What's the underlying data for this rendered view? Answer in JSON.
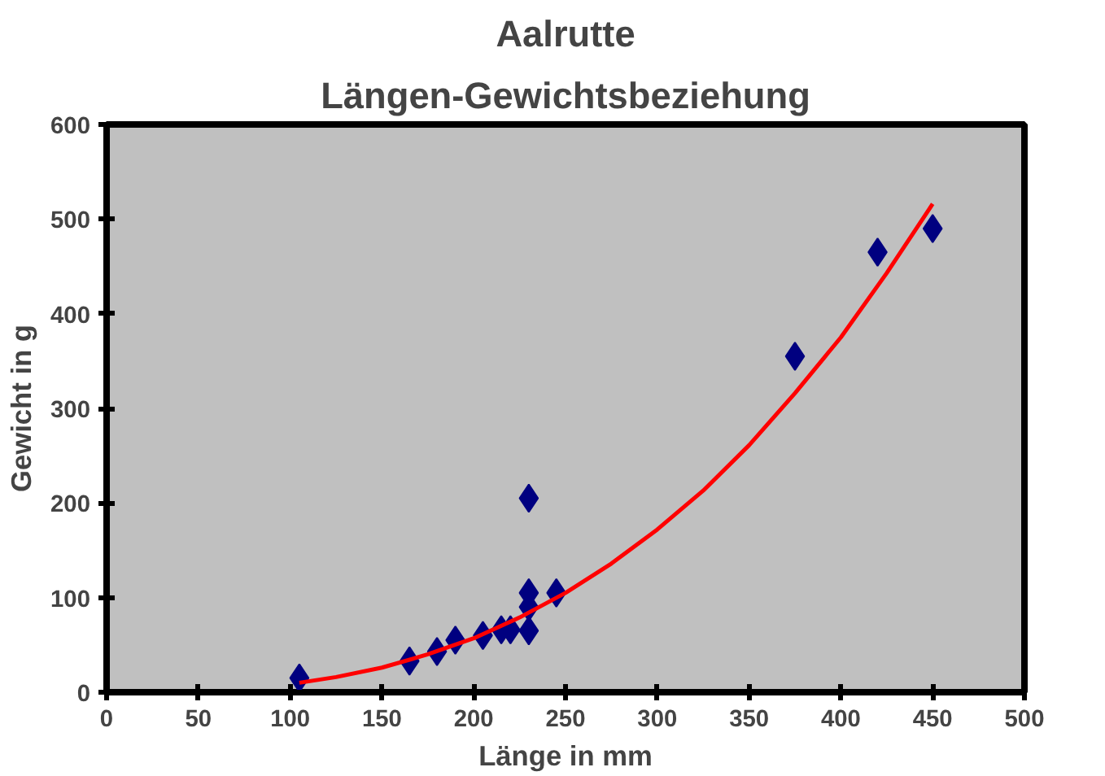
{
  "chart_data": {
    "type": "scatter",
    "title": "Aalrutte",
    "subtitle": "Längen-Gewichtsbeziehung",
    "xlabel": "Länge in mm",
    "ylabel": "Gewicht in g",
    "xlim": [
      0,
      500
    ],
    "xticks": [
      0,
      50,
      100,
      150,
      200,
      250,
      300,
      350,
      400,
      450,
      500
    ],
    "ylim": [
      0,
      600
    ],
    "yticks": [
      0,
      100,
      200,
      300,
      400,
      500,
      600
    ],
    "grid": false,
    "marker": "diamond",
    "series": [
      {
        "color": "#000080",
        "x": [
          105,
          165,
          180,
          190,
          205,
          215,
          220,
          230,
          230,
          230,
          230,
          245,
          375,
          420,
          450
        ],
        "values": [
          15,
          33,
          43,
          55,
          60,
          66,
          66,
          205,
          105,
          90,
          65,
          105,
          355,
          465,
          490
        ]
      },
      {
        "type": "line",
        "color": "#ff0000",
        "line_style": "solid",
        "marker": "none",
        "x": [
          105,
          125,
          150,
          175,
          200,
          225,
          250,
          275,
          300,
          325,
          350,
          375,
          400,
          425,
          450
        ],
        "values": [
          10,
          16,
          26,
          40,
          57,
          79,
          105,
          136,
          172,
          213,
          261,
          316,
          375,
          443,
          516
        ]
      }
    ]
  }
}
